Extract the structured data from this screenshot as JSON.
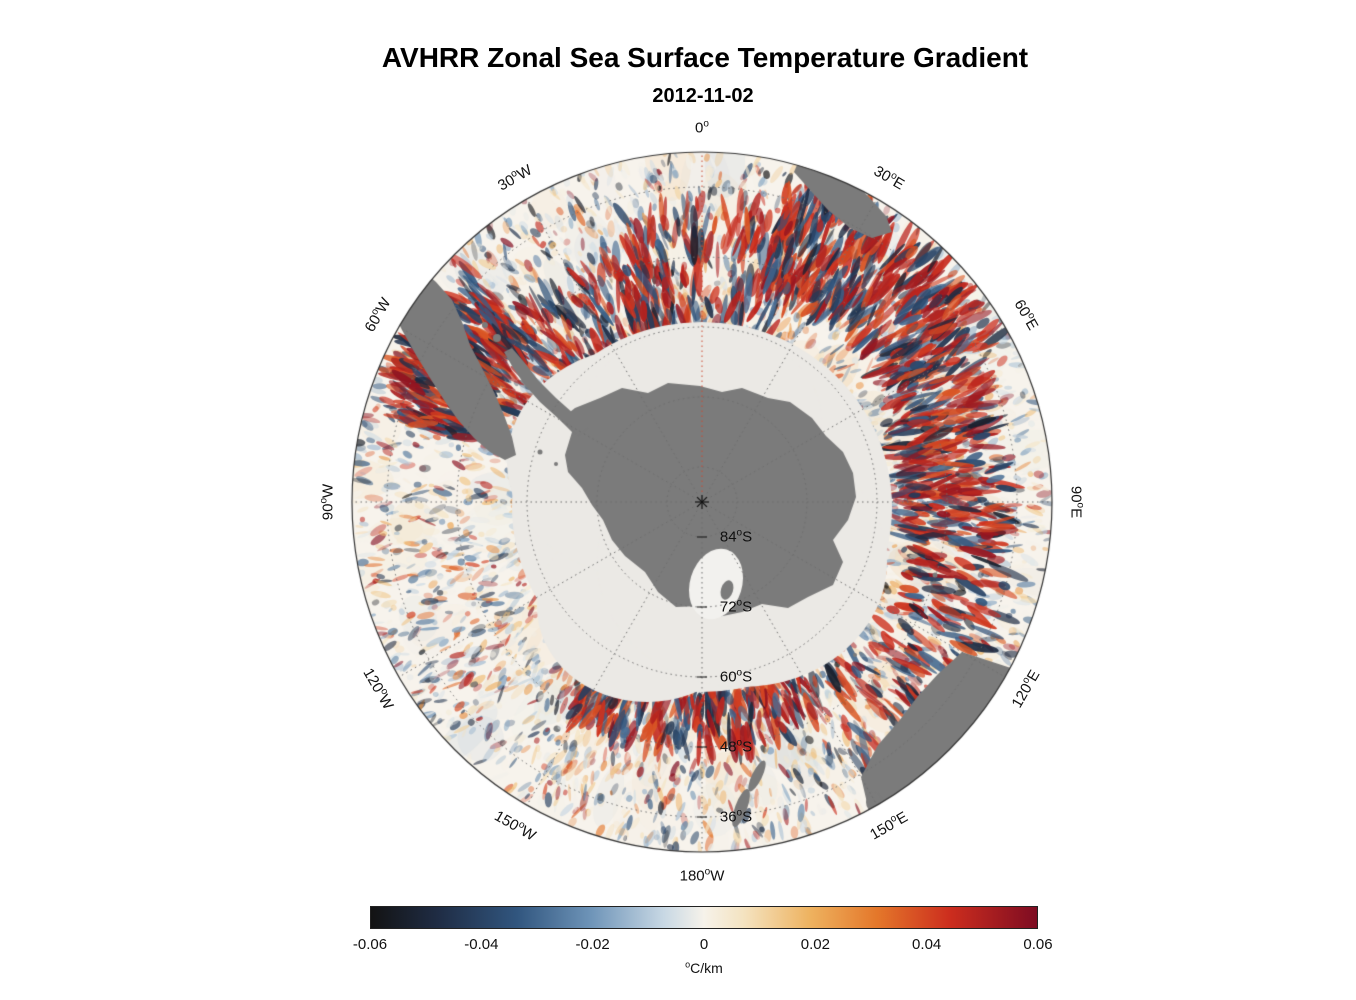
{
  "title": "AVHRR Zonal Sea Surface Temperature Gradient",
  "subtitle": "2012-11-02",
  "chart_data": {
    "type": "heatmap",
    "projection": "south polar stereographic",
    "region": "Southern Ocean / Antarctica",
    "title": "AVHRR Zonal Sea Surface Temperature Gradient",
    "date": "2012-11-02",
    "variable": "Zonal sea surface temperature gradient",
    "units": "°C/km",
    "value_range": [
      -0.06,
      0.06
    ],
    "colorbar": {
      "label": "°C/km",
      "ticks": [
        "-0.06",
        "-0.04",
        "-0.02",
        "0",
        "0.02",
        "0.04",
        "0.06"
      ],
      "tick_values": [
        -0.06,
        -0.04,
        -0.02,
        0,
        0.02,
        0.04,
        0.06
      ],
      "stops": [
        {
          "pos": 0.0,
          "color": "#131313"
        },
        {
          "pos": 0.1,
          "color": "#1f2c44"
        },
        {
          "pos": 0.22,
          "color": "#31567f"
        },
        {
          "pos": 0.33,
          "color": "#6e94b8"
        },
        {
          "pos": 0.44,
          "color": "#c8d8e4"
        },
        {
          "pos": 0.5,
          "color": "#f6f2ea"
        },
        {
          "pos": 0.56,
          "color": "#f4e3c0"
        },
        {
          "pos": 0.66,
          "color": "#eeb25f"
        },
        {
          "pos": 0.76,
          "color": "#e4772a"
        },
        {
          "pos": 0.87,
          "color": "#cc2d1e"
        },
        {
          "pos": 1.0,
          "color": "#7e0c22"
        }
      ]
    },
    "map": {
      "pole": "South Pole",
      "graticule_longitude_step_deg": 30,
      "longitude_labels": [
        {
          "text": "0°",
          "azimuth_deg": 0
        },
        {
          "text": "30°E",
          "azimuth_deg": 30
        },
        {
          "text": "60°E",
          "azimuth_deg": 60
        },
        {
          "text": "90°E",
          "azimuth_deg": 90
        },
        {
          "text": "120°E",
          "azimuth_deg": 120
        },
        {
          "text": "150°E",
          "azimuth_deg": 150
        },
        {
          "text": "180°W",
          "azimuth_deg": 180
        },
        {
          "text": "150°W",
          "azimuth_deg": 210
        },
        {
          "text": "120°W",
          "azimuth_deg": 240
        },
        {
          "text": "90°W",
          "azimuth_deg": 270
        },
        {
          "text": "60°W",
          "azimuth_deg": 300
        },
        {
          "text": "30°W",
          "azimuth_deg": 330
        }
      ],
      "latitude_labels": [
        {
          "text": "84°S",
          "lat_deg": 84
        },
        {
          "text": "72°S",
          "lat_deg": 72
        },
        {
          "text": "60°S",
          "lat_deg": 60
        },
        {
          "text": "48°S",
          "lat_deg": 48
        },
        {
          "text": "36°S",
          "lat_deg": 36
        }
      ],
      "colors": {
        "land": "#7b7b7b",
        "sea_ice": "#ebe9e5",
        "ocean": "#f7f3ec",
        "graticule": "#6e6e6e",
        "prime_meridian": "#cc4a33",
        "outline": "#333333"
      },
      "land_masses": [
        "Antarctica",
        "South America",
        "Africa",
        "Australia",
        "New Zealand",
        "Tasmania"
      ]
    }
  }
}
